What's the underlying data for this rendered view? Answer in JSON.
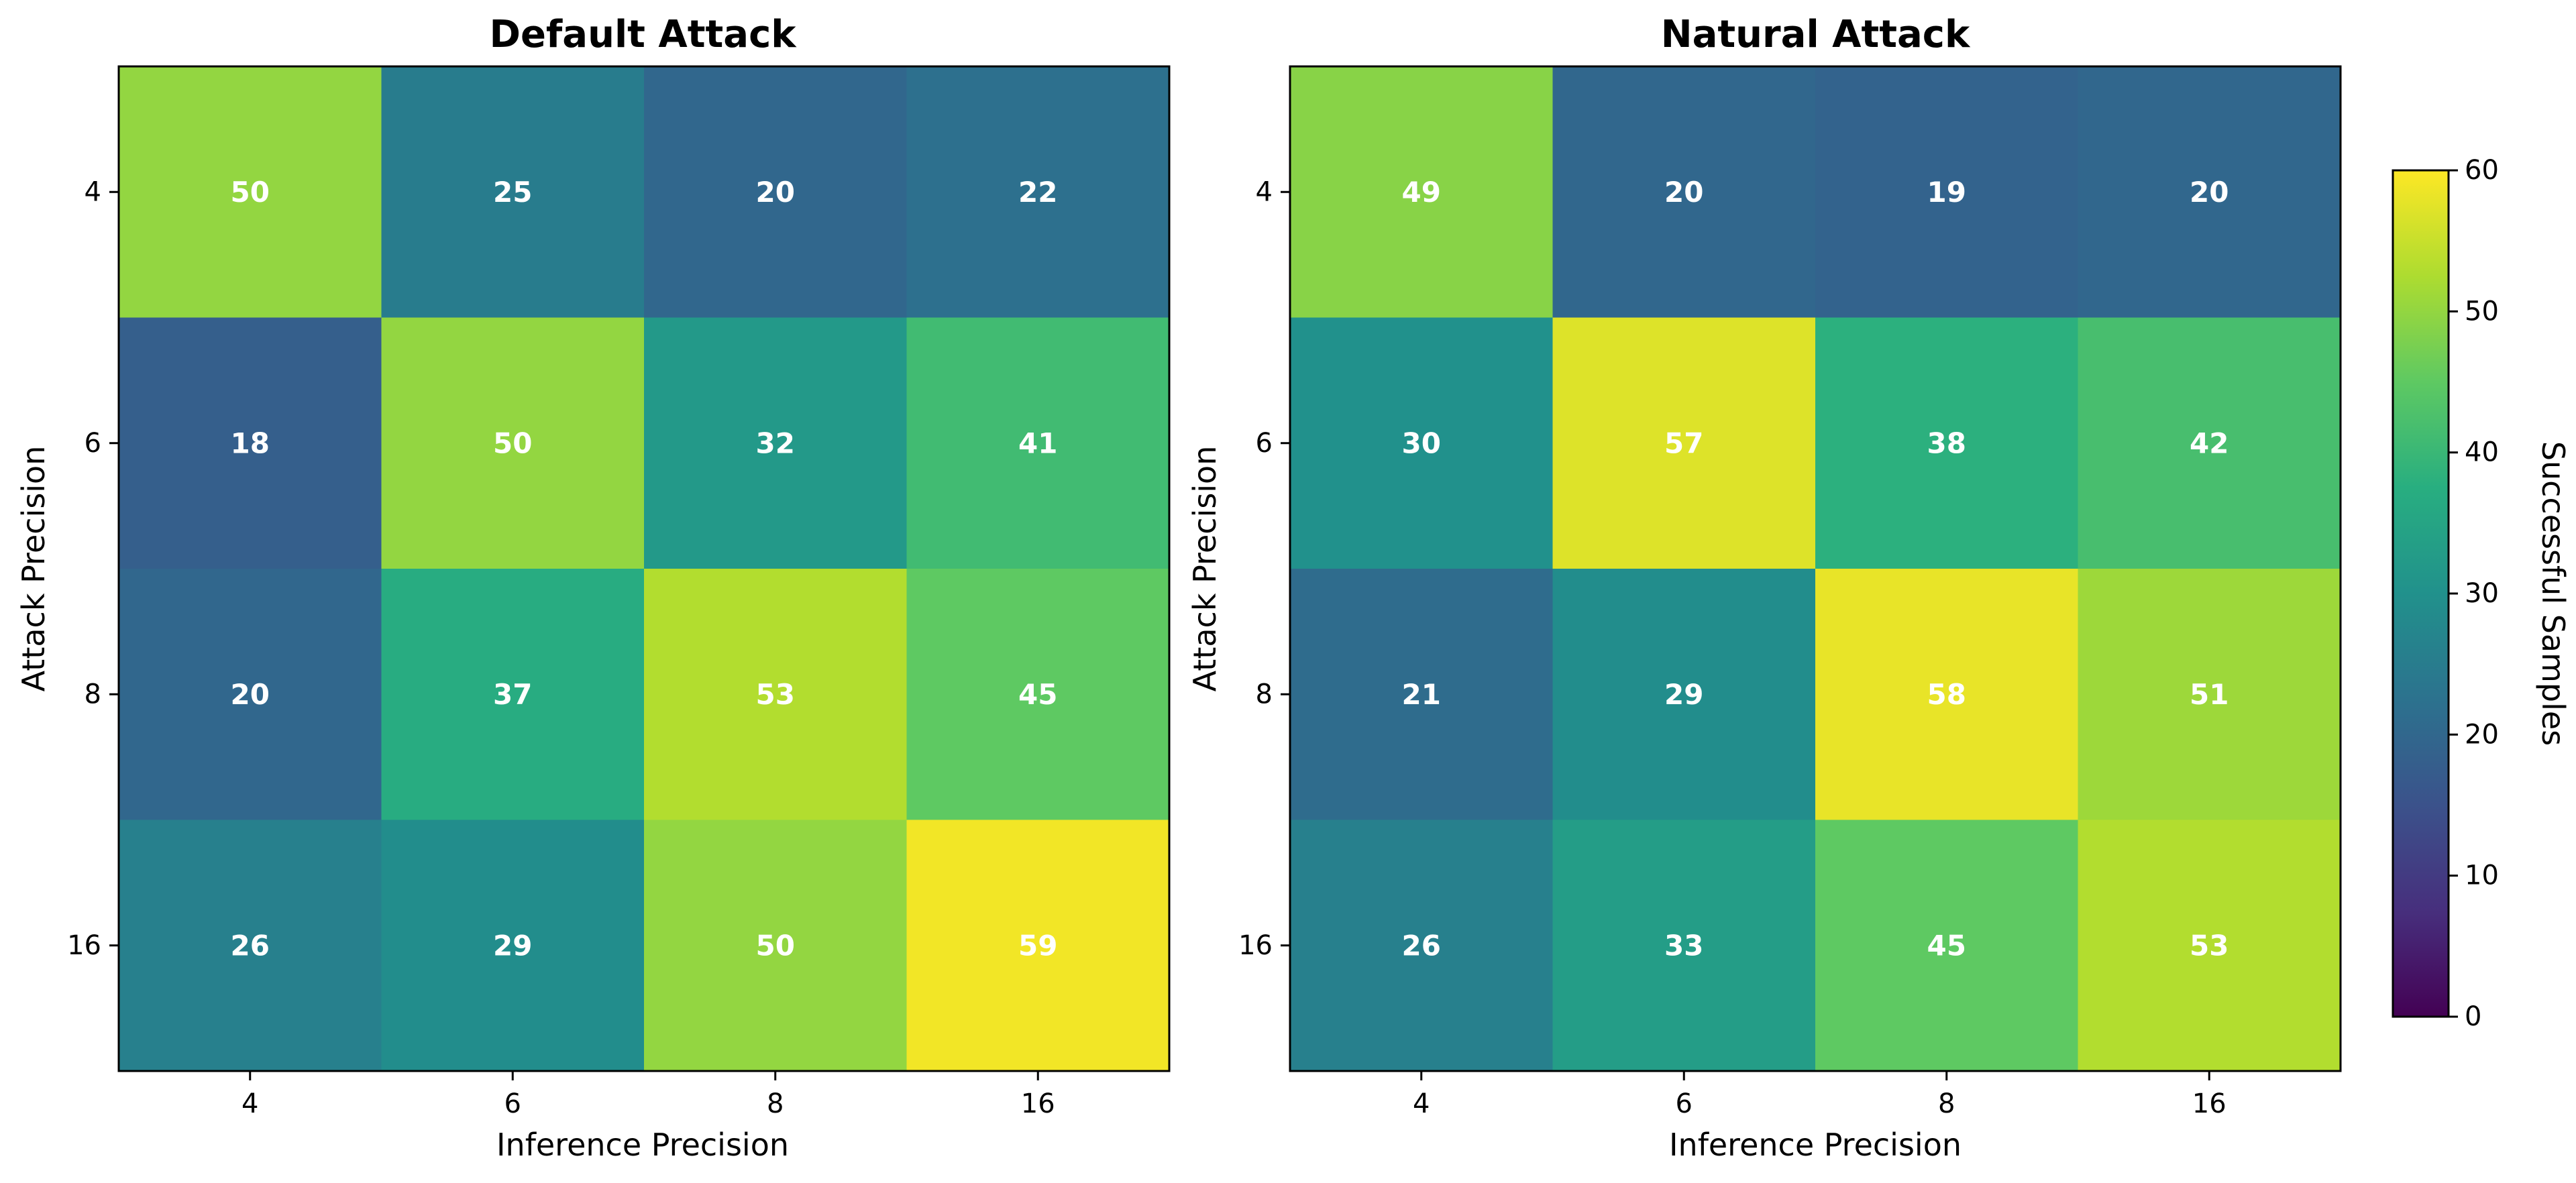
{
  "chart_data": [
    {
      "type": "heatmap",
      "title": "Default Attack",
      "xlabel": "Inference Precision",
      "ylabel": "Attack Precision",
      "x_categories": [
        "4",
        "6",
        "8",
        "16"
      ],
      "y_categories": [
        "4",
        "6",
        "8",
        "16"
      ],
      "values": [
        [
          50,
          25,
          20,
          22
        ],
        [
          18,
          50,
          32,
          41
        ],
        [
          20,
          37,
          53,
          45
        ],
        [
          26,
          29,
          50,
          59
        ]
      ]
    },
    {
      "type": "heatmap",
      "title": "Natural Attack",
      "xlabel": "Inference Precision",
      "ylabel": "Attack Precision",
      "x_categories": [
        "4",
        "6",
        "8",
        "16"
      ],
      "y_categories": [
        "4",
        "6",
        "8",
        "16"
      ],
      "values": [
        [
          49,
          20,
          19,
          20
        ],
        [
          30,
          57,
          38,
          42
        ],
        [
          21,
          29,
          58,
          51
        ],
        [
          26,
          33,
          45,
          53
        ]
      ]
    }
  ],
  "colorbar": {
    "label": "Successful Samples",
    "colormap": "viridis",
    "range": [
      0,
      60
    ],
    "ticks": [
      0,
      10,
      20,
      30,
      40,
      50,
      60
    ]
  },
  "colors": {
    "cell_label": "#ffffff",
    "axis": "#000000",
    "background": "#ffffff"
  }
}
